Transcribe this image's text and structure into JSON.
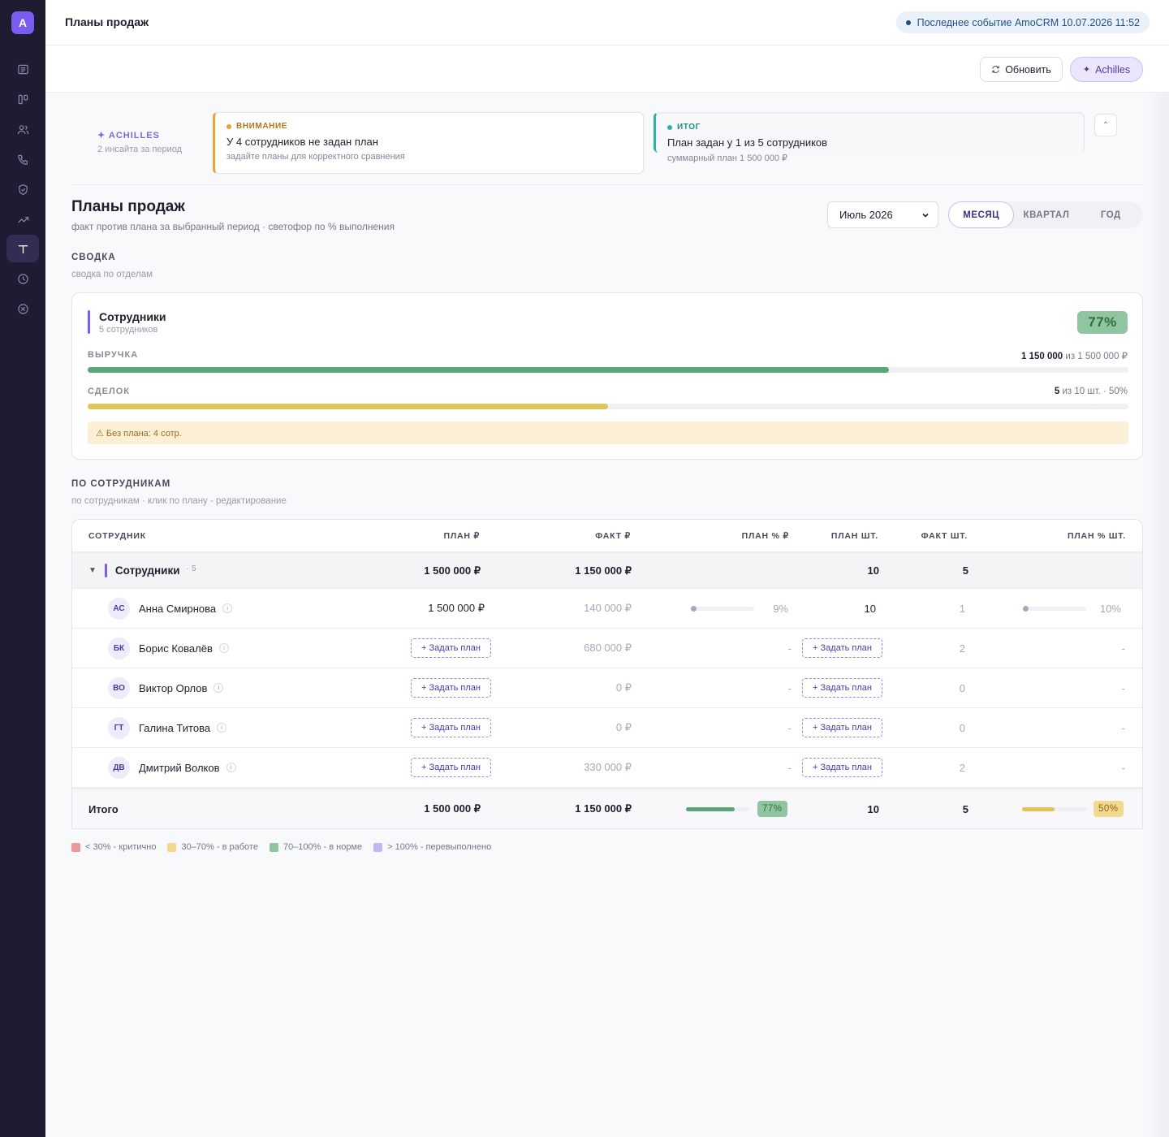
{
  "app": {
    "logo": "A"
  },
  "sidebar": {
    "items": [
      {
        "icon": "list-icon"
      },
      {
        "icon": "kanban-icon"
      },
      {
        "icon": "users-icon"
      },
      {
        "icon": "phone-icon"
      },
      {
        "icon": "shield-icon"
      },
      {
        "icon": "trend-icon"
      },
      {
        "icon": "plan-icon",
        "active": true
      },
      {
        "icon": "clock-icon"
      },
      {
        "icon": "close-circle-icon"
      }
    ]
  },
  "topbar": {
    "title": "Планы продаж",
    "event": "Последнее событие AmoCRM 10.07.2026 11:52"
  },
  "actions": {
    "refresh": "Обновить",
    "achilles": "Achilles"
  },
  "insights": {
    "label": "ACHILLES",
    "sub": "2 инсайта за период",
    "warn": {
      "tag": "ВНИМАНИЕ",
      "title": "У 4 сотрудников не задан план",
      "sub": "задайте планы для корректного сравнения"
    },
    "total": {
      "tag": "ИТОГ",
      "title": "План задан у 1 из 5 сотрудников",
      "sub": "суммарный план 1 500 000 ₽"
    }
  },
  "header": {
    "title": "Планы продаж",
    "subtitle": "факт против плана за выбранный период · светофор по % выполнения",
    "period": "Июль 2026",
    "tabs": [
      "МЕСЯЦ",
      "КВАРТАЛ",
      "ГОД"
    ]
  },
  "summary": {
    "heading": "СВОДКА",
    "sub": "сводка по отделам",
    "dept": "Сотрудники",
    "dept_sub": "5 сотрудников",
    "pct": "77%",
    "revenue_label": "ВЫРУЧКА",
    "revenue_fact": "1 150 000",
    "revenue_rest": "из 1 500 000 ₽",
    "revenue_ratio": 0.77,
    "deals_label": "СДЕЛОК",
    "deals_fact": "5",
    "deals_rest": "из 10 шт. · 50%",
    "deals_ratio": 0.5,
    "no_plan": "⚠  Без плана: 4 сотр."
  },
  "employees": {
    "heading": "ПО СОТРУДНИКАМ",
    "sub": "по сотрудникам · клик по плану - редактирование",
    "columns": [
      "СОТРУДНИК",
      "ПЛАН ₽",
      "ФАКТ ₽",
      "ПЛАН % ₽",
      "ПЛАН ШТ.",
      "ФАКТ ШТ.",
      "ПЛАН % ШТ."
    ],
    "group": {
      "name": "Сотрудники",
      "count": "· 5",
      "plan": "1 500 000 ₽",
      "fact": "1 150 000 ₽",
      "plan_qty": "10",
      "fact_qty": "5"
    },
    "rows": [
      {
        "initials": "АС",
        "name": "Анна Смирнова",
        "plan": "1 500 000 ₽",
        "fact": "140 000 ₽",
        "pct": "9%",
        "pct_ratio": 0.09,
        "plan_qty": "10",
        "fact_qty": "1",
        "pct_qty": "10%",
        "pct_qty_ratio": 0.1
      },
      {
        "initials": "БК",
        "name": "Борис Ковалёв",
        "set_plan": "+ Задать план",
        "fact": "680 000 ₽",
        "dash": "-",
        "fact_qty": "2"
      },
      {
        "initials": "ВО",
        "name": "Виктор Орлов",
        "set_plan": "+ Задать план",
        "fact": "0 ₽",
        "dash": "-",
        "fact_qty": "0"
      },
      {
        "initials": "ГТ",
        "name": "Галина Титова",
        "set_plan": "+ Задать план",
        "fact": "0 ₽",
        "dash": "-",
        "fact_qty": "0"
      },
      {
        "initials": "ДВ",
        "name": "Дмитрий Волков",
        "set_plan": "+ Задать план",
        "fact": "330 000 ₽",
        "dash": "-",
        "fact_qty": "2"
      }
    ],
    "total": {
      "label": "Итого",
      "plan": "1 500 000 ₽",
      "fact": "1 150 000 ₽",
      "pct": "77%",
      "pct_ratio": 0.77,
      "plan_qty": "10",
      "fact_qty": "5",
      "pct_qty": "50%",
      "pct_qty_ratio": 0.5
    }
  },
  "legend": [
    {
      "color": "#e89a9a",
      "text": "< 30% - критично"
    },
    {
      "color": "#f3d98f",
      "text": "30–70% - в работе"
    },
    {
      "color": "#8fc6a1",
      "text": "70–100% - в норме"
    },
    {
      "color": "#c3b6f3",
      "text": "> 100% - перевыполнено"
    }
  ],
  "colors": {
    "accent": "#7b5cf0",
    "green": "#5aa676",
    "yellow": "#e2c358"
  }
}
